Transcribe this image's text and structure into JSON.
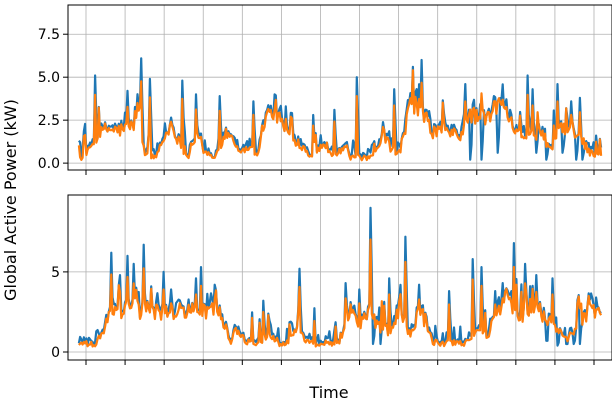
{
  "chart_data": {
    "type": "line",
    "shared_xlabel": "Time",
    "shared_ylabel": "Global Active Power (kW)",
    "x_range": [
      0,
      1
    ],
    "x_tick_count": 14,
    "grid": true,
    "legend": "none",
    "colors": {
      "series_a": "#1f77b4",
      "series_b": "#ff7f0e"
    },
    "panels": [
      {
        "name": "top",
        "ylim": [
          -0.4,
          9.2
        ],
        "yticks": [
          0.0,
          2.5,
          5.0,
          7.5
        ],
        "ytick_labels": [
          "0.0",
          "2.5",
          "5.0",
          "7.5"
        ],
        "keyframes_x": [
          0.0,
          0.03,
          0.04,
          0.05,
          0.06,
          0.07,
          0.09,
          0.11,
          0.12,
          0.13,
          0.14,
          0.16,
          0.17,
          0.19,
          0.21,
          0.22,
          0.24,
          0.25,
          0.27,
          0.29,
          0.3,
          0.32,
          0.33,
          0.35,
          0.36,
          0.38,
          0.4,
          0.42,
          0.44,
          0.45,
          0.47,
          0.49,
          0.51,
          0.52,
          0.54,
          0.56,
          0.58,
          0.6,
          0.61,
          0.63,
          0.65,
          0.67,
          0.69,
          0.72,
          0.74,
          0.77,
          0.79,
          0.81,
          0.83,
          0.85,
          0.87,
          0.89,
          0.9,
          0.92,
          0.94,
          0.96,
          0.98,
          1.0
        ],
        "keyframes_y": [
          0.3,
          0.3,
          0.8,
          1.5,
          1.7,
          2.0,
          1.9,
          2.0,
          2.2,
          3.5,
          0.6,
          0.3,
          1.0,
          2.3,
          0.8,
          0.3,
          1.8,
          0.6,
          0.3,
          1.8,
          1.6,
          0.6,
          1.0,
          0.5,
          2.5,
          3.2,
          1.8,
          1.3,
          0.7,
          0.3,
          1.2,
          0.4,
          1.0,
          0.3,
          0.3,
          0.3,
          1.8,
          0.3,
          0.7,
          3.5,
          3.0,
          1.8,
          2.0,
          1.5,
          2.8,
          2.5,
          3.5,
          2.8,
          1.8,
          1.5,
          1.8,
          0.6,
          2.0,
          1.8,
          1.6,
          0.6,
          0.5,
          0.6
        ],
        "spikes": [
          [
            0.05,
            5.1
          ],
          [
            0.11,
            4.2
          ],
          [
            0.135,
            6.1
          ],
          [
            0.15,
            4.9
          ],
          [
            0.21,
            4.8
          ],
          [
            0.235,
            4.0
          ],
          [
            0.28,
            3.9
          ],
          [
            0.34,
            3.6
          ],
          [
            0.38,
            4.0
          ],
          [
            0.4,
            3.3
          ],
          [
            0.45,
            2.8
          ],
          [
            0.49,
            3.1
          ],
          [
            0.53,
            5.0
          ],
          [
            0.6,
            4.3
          ],
          [
            0.65,
            6.0
          ],
          [
            0.73,
            4.6
          ],
          [
            0.76,
            5.2
          ],
          [
            0.79,
            4.6
          ],
          [
            0.845,
            5.1
          ],
          [
            0.855,
            4.3
          ],
          [
            0.9,
            4.6
          ],
          [
            0.925,
            3.6
          ],
          [
            0.94,
            3.8
          ],
          [
            0.97,
            1.6
          ]
        ],
        "dips": [
          [
            0.74,
            0.2
          ],
          [
            0.76,
            0.2
          ],
          [
            0.79,
            0.6
          ],
          [
            0.86,
            0.6
          ],
          [
            0.88,
            0.2
          ],
          [
            0.91,
            0.6
          ],
          [
            0.935,
            0.2
          ],
          [
            0.945,
            0.2
          ]
        ]
      },
      {
        "name": "bottom",
        "ylim": [
          -0.5,
          9.8
        ],
        "yticks": [
          0,
          5
        ],
        "ytick_labels": [
          "0",
          "5"
        ],
        "keyframes_x": [
          0.0,
          0.01,
          0.02,
          0.03,
          0.04,
          0.05,
          0.06,
          0.08,
          0.1,
          0.12,
          0.13,
          0.14,
          0.16,
          0.18,
          0.2,
          0.22,
          0.24,
          0.26,
          0.28,
          0.3,
          0.31,
          0.33,
          0.35,
          0.37,
          0.39,
          0.41,
          0.42,
          0.44,
          0.46,
          0.48,
          0.5,
          0.52,
          0.54,
          0.55,
          0.57,
          0.59,
          0.61,
          0.63,
          0.65,
          0.67,
          0.69,
          0.71,
          0.73,
          0.75,
          0.77,
          0.79,
          0.81,
          0.83,
          0.85,
          0.87,
          0.88,
          0.9,
          0.92,
          0.94,
          0.96,
          0.98,
          1.0
        ],
        "keyframes_y": [
          0.5,
          1.8,
          0.5,
          0.5,
          0.5,
          0.4,
          1.0,
          2.5,
          2.2,
          3.4,
          2.6,
          2.6,
          2.6,
          2.4,
          2.5,
          2.6,
          2.5,
          2.6,
          2.5,
          0.6,
          1.5,
          0.6,
          0.5,
          1.2,
          0.5,
          0.8,
          1.6,
          0.6,
          0.5,
          0.6,
          0.5,
          2.6,
          1.5,
          2.6,
          1.6,
          1.3,
          2.8,
          1.0,
          2.5,
          0.6,
          0.5,
          0.6,
          0.5,
          1.2,
          1.0,
          2.5,
          3.5,
          2.0,
          3.0,
          2.5,
          2.0,
          1.5,
          0.8,
          2.0,
          2.5,
          2.6,
          2.6
        ],
        "spikes": [
          [
            0.08,
            6.2
          ],
          [
            0.095,
            4.8
          ],
          [
            0.11,
            6.0
          ],
          [
            0.12,
            5.5
          ],
          [
            0.14,
            6.7
          ],
          [
            0.175,
            5.0
          ],
          [
            0.19,
            3.9
          ],
          [
            0.235,
            4.6
          ],
          [
            0.245,
            5.3
          ],
          [
            0.27,
            4.2
          ],
          [
            0.36,
            3.2
          ],
          [
            0.425,
            5.2
          ],
          [
            0.51,
            4.3
          ],
          [
            0.535,
            3.9
          ],
          [
            0.555,
            9.0
          ],
          [
            0.59,
            4.6
          ],
          [
            0.62,
            7.2
          ],
          [
            0.645,
            4.2
          ],
          [
            0.7,
            3.8
          ],
          [
            0.745,
            5.8
          ],
          [
            0.76,
            5.3
          ],
          [
            0.785,
            3.8
          ],
          [
            0.8,
            4.3
          ],
          [
            0.82,
            6.8
          ],
          [
            0.84,
            5.5
          ],
          [
            0.86,
            4.8
          ],
          [
            0.89,
            4.6
          ],
          [
            0.94,
            3.5
          ],
          [
            0.97,
            3.4
          ]
        ],
        "dips": [
          [
            0.56,
            0.5
          ],
          [
            0.575,
            0.5
          ],
          [
            0.88,
            0.7
          ],
          [
            0.9,
            0.4
          ],
          [
            0.915,
            0.5
          ],
          [
            0.93,
            0.5
          ],
          [
            0.94,
            0.5
          ]
        ]
      }
    ]
  }
}
